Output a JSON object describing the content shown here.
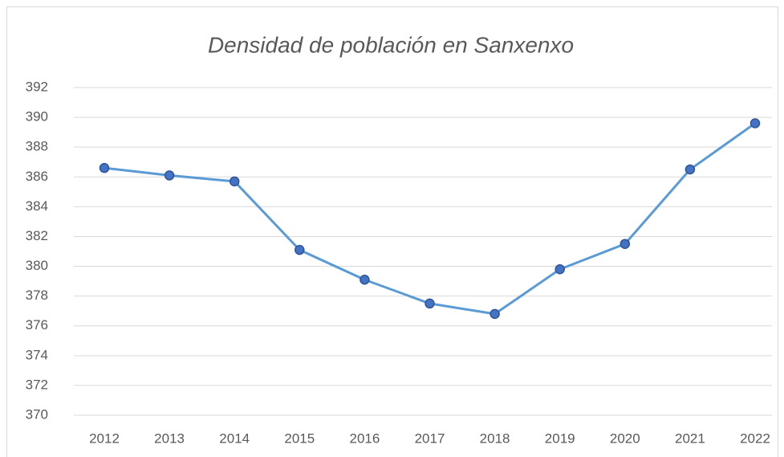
{
  "chart_data": {
    "type": "line",
    "title": "Densidad de población en Sanxenxo",
    "categories": [
      "2012",
      "2013",
      "2014",
      "2015",
      "2016",
      "2017",
      "2018",
      "2019",
      "2020",
      "2021",
      "2022"
    ],
    "values": [
      386.6,
      386.1,
      385.7,
      381.1,
      379.1,
      377.5,
      376.8,
      379.8,
      381.5,
      386.5,
      389.6
    ],
    "color": "#5b9bd5",
    "marker_color": "#4472c4",
    "ylim": [
      370,
      392
    ],
    "yticks": [
      370,
      372,
      374,
      376,
      378,
      380,
      382,
      384,
      386,
      388,
      390,
      392
    ],
    "grid": true
  }
}
